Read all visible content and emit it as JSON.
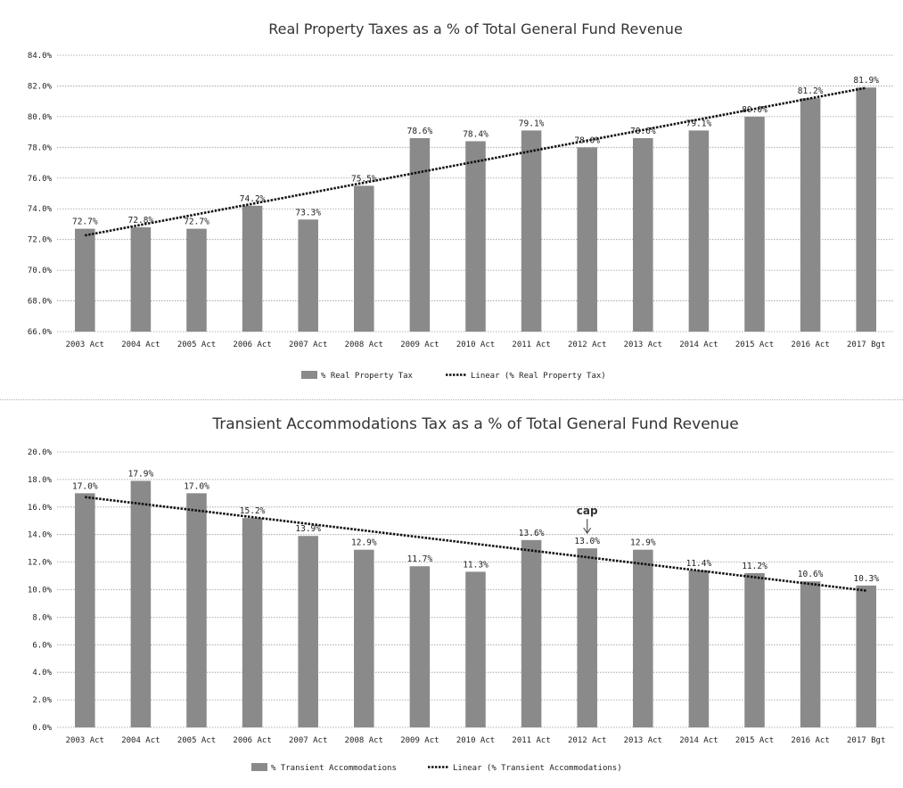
{
  "chart_data": [
    {
      "type": "bar",
      "title": "Real Property Taxes as a % of Total General Fund Revenue",
      "categories": [
        "2003 Act",
        "2004 Act",
        "2005 Act",
        "2006 Act",
        "2007 Act",
        "2008 Act",
        "2009 Act",
        "2010 Act",
        "2011 Act",
        "2012 Act",
        "2013 Act",
        "2014 Act",
        "2015 Act",
        "2016 Act",
        "2017 Bgt"
      ],
      "series": [
        {
          "name": "% Real Property Tax",
          "values": [
            72.7,
            72.8,
            72.7,
            74.2,
            73.3,
            75.5,
            78.6,
            78.4,
            79.1,
            78.0,
            78.6,
            79.1,
            80.0,
            81.2,
            81.9
          ]
        }
      ],
      "data_labels": [
        "72.7%",
        "72.8%",
        "72.7%",
        "74.2%",
        "73.3%",
        "75.5%",
        "78.6%",
        "78.4%",
        "79.1%",
        "78.0%",
        "78.6%",
        "79.1%",
        "80.0%",
        "81.2%",
        "81.9%"
      ],
      "trendline": {
        "name": "Linear (% Real Property Tax)",
        "type": "linear"
      },
      "ylim": [
        66,
        84
      ],
      "yticks": [
        "66.0%",
        "68.0%",
        "70.0%",
        "72.0%",
        "74.0%",
        "76.0%",
        "78.0%",
        "80.0%",
        "82.0%",
        "84.0%"
      ],
      "grid": true,
      "legend_position": "bottom"
    },
    {
      "type": "bar",
      "title": "Transient Accommodations Tax as a % of Total General Fund Revenue",
      "categories": [
        "2003 Act",
        "2004 Act",
        "2005 Act",
        "2006 Act",
        "2007 Act",
        "2008 Act",
        "2009 Act",
        "2010 Act",
        "2011 Act",
        "2012 Act",
        "2013 Act",
        "2014 Act",
        "2015 Act",
        "2016 Act",
        "2017 Bgt"
      ],
      "series": [
        {
          "name": "% Transient Accommodations",
          "values": [
            17.0,
            17.9,
            17.0,
            15.2,
            13.9,
            12.9,
            11.7,
            11.3,
            13.6,
            13.0,
            12.9,
            11.4,
            11.2,
            10.6,
            10.3
          ]
        }
      ],
      "data_labels": [
        "17.0%",
        "17.9%",
        "17.0%",
        "15.2%",
        "13.9%",
        "12.9%",
        "11.7%",
        "11.3%",
        "13.6%",
        "13.0%",
        "12.9%",
        "11.4%",
        "11.2%",
        "10.6%",
        "10.3%"
      ],
      "trendline": {
        "name": "Linear (% Transient Accommodations)",
        "type": "linear"
      },
      "annotations": [
        {
          "text": "cap",
          "category": "2012 Act"
        }
      ],
      "ylim": [
        0,
        20
      ],
      "yticks": [
        "0.0%",
        "2.0%",
        "4.0%",
        "6.0%",
        "8.0%",
        "10.0%",
        "12.0%",
        "14.0%",
        "16.0%",
        "18.0%",
        "20.0%"
      ],
      "grid": true,
      "legend_position": "bottom"
    }
  ]
}
